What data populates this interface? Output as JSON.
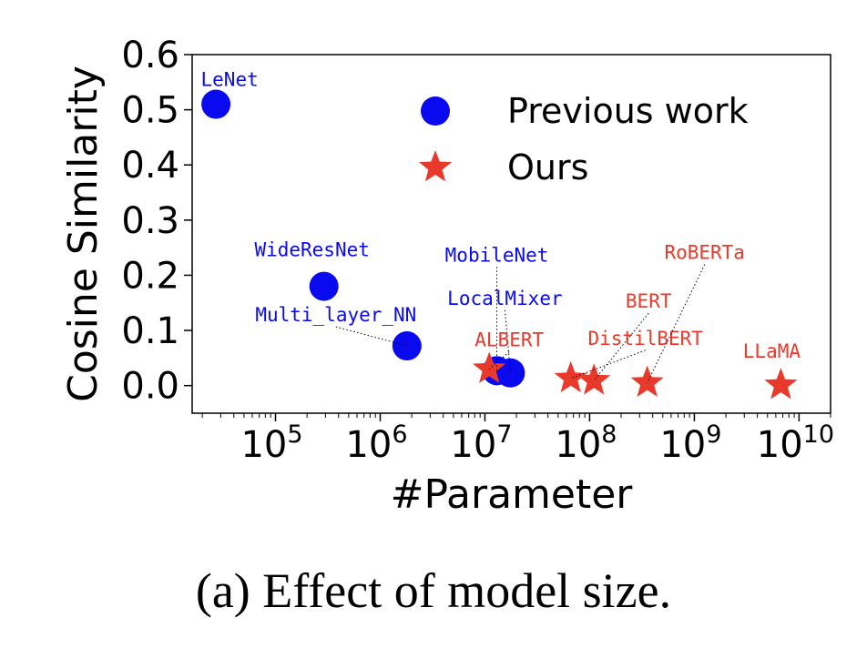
{
  "caption": "(a) Effect of model size.",
  "chart_data": {
    "type": "scatter",
    "title": "",
    "xlabel": "#Parameter",
    "ylabel": "Cosine Similarity",
    "xscale": "log",
    "xlim": [
      16000,
      20000000000
    ],
    "ylim": [
      -0.05,
      0.6
    ],
    "xticks": [
      {
        "value": 100000,
        "base": "10",
        "exp": "5"
      },
      {
        "value": 1000000,
        "base": "10",
        "exp": "6"
      },
      {
        "value": 10000000,
        "base": "10",
        "exp": "7"
      },
      {
        "value": 100000000,
        "base": "10",
        "exp": "8"
      },
      {
        "value": 1000000000,
        "base": "10",
        "exp": "9"
      },
      {
        "value": 10000000000,
        "base": "10",
        "exp": "10"
      }
    ],
    "yticks": [
      {
        "value": 0.0,
        "label": "0.0"
      },
      {
        "value": 0.1,
        "label": "0.1"
      },
      {
        "value": 0.2,
        "label": "0.2"
      },
      {
        "value": 0.3,
        "label": "0.3"
      },
      {
        "value": 0.4,
        "label": "0.4"
      },
      {
        "value": 0.5,
        "label": "0.5"
      },
      {
        "value": 0.6,
        "label": "0.6"
      }
    ],
    "legend_position": "top-right",
    "series": [
      {
        "name": "Previous work",
        "marker": "circle",
        "color": "#0a0af0",
        "points": [
          {
            "x": 27000,
            "y": 0.51,
            "label": "LeNet"
          },
          {
            "x": 290000,
            "y": 0.18,
            "label": "WideResNet"
          },
          {
            "x": 1800000,
            "y": 0.072,
            "label": "Multi_layer_NN"
          },
          {
            "x": 13000000,
            "y": 0.027,
            "label": "MobileNet"
          },
          {
            "x": 17500000,
            "y": 0.023,
            "label": "LocalMixer"
          }
        ]
      },
      {
        "name": "Ours",
        "marker": "star",
        "color": "#e8392b",
        "points": [
          {
            "x": 11000000,
            "y": 0.03,
            "label": "ALBERT"
          },
          {
            "x": 66000000,
            "y": 0.013,
            "label": "DistilBERT"
          },
          {
            "x": 110000000,
            "y": 0.009,
            "label": "BERT"
          },
          {
            "x": 355000000,
            "y": 0.005,
            "label": "RoBERTa"
          },
          {
            "x": 6700000000,
            "y": 0.001,
            "label": "LLaMA"
          }
        ]
      }
    ]
  }
}
